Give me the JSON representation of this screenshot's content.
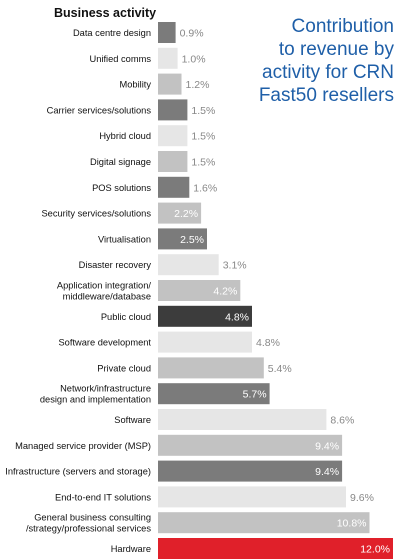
{
  "chart_data": {
    "type": "bar",
    "orientation": "horizontal",
    "column_header": "Business activity",
    "title_lines": [
      "Contribution",
      "to revenue by",
      "activity for CRN",
      "Fast50 resellers"
    ],
    "categories": [
      [
        "Data centre design"
      ],
      [
        "Unified comms"
      ],
      [
        "Mobility"
      ],
      [
        "Carrier services/solutions"
      ],
      [
        "Hybrid cloud"
      ],
      [
        "Digital signage"
      ],
      [
        "POS solutions"
      ],
      [
        "Security services/solutions"
      ],
      [
        "Virtualisation"
      ],
      [
        "Disaster recovery"
      ],
      [
        "Application integration/",
        "middleware/database"
      ],
      [
        "Public cloud"
      ],
      [
        "Software development"
      ],
      [
        "Private cloud"
      ],
      [
        "Network/infrastructure",
        "design and implementation"
      ],
      [
        "Software"
      ],
      [
        "Managed service provider (MSP)"
      ],
      [
        "Infrastructure (servers and storage)"
      ],
      [
        "End-to-end IT solutions"
      ],
      [
        "General business consulting",
        "/strategy/professional services"
      ],
      [
        "Hardware"
      ]
    ],
    "values": [
      0.9,
      1.0,
      1.2,
      1.5,
      1.5,
      1.5,
      1.6,
      2.2,
      2.5,
      3.1,
      4.2,
      4.8,
      4.8,
      5.4,
      5.7,
      8.6,
      9.4,
      9.4,
      9.6,
      10.8,
      12.0
    ],
    "value_labels": [
      "0.9%",
      "1.0%",
      "1.2%",
      "1.5%",
      "1.5%",
      "1.5%",
      "1.6%",
      "2.2%",
      "2.5%",
      "3.1%",
      "4.2%",
      "4.8%",
      "4.8%",
      "5.4%",
      "5.7%",
      "8.6%",
      "9.4%",
      "9.4%",
      "9.6%",
      "10.8%",
      "12.0%"
    ],
    "bar_colors": [
      "#7b7b7b",
      "#e6e6e6",
      "#c2c2c2",
      "#7b7b7b",
      "#e6e6e6",
      "#c2c2c2",
      "#7b7b7b",
      "#c2c2c2",
      "#7b7b7b",
      "#e6e6e6",
      "#c2c2c2",
      "#3c3c3c",
      "#e6e6e6",
      "#c2c2c2",
      "#7b7b7b",
      "#e6e6e6",
      "#c2c2c2",
      "#7b7b7b",
      "#e6e6e6",
      "#c2c2c2",
      "#e0202a"
    ],
    "label_colors": [
      "#888888",
      "#888888",
      "#888888",
      "#888888",
      "#888888",
      "#888888",
      "#888888",
      "#ffffff",
      "#ffffff",
      "#888888",
      "#ffffff",
      "#ffffff",
      "#888888",
      "#888888",
      "#ffffff",
      "#888888",
      "#ffffff",
      "#ffffff",
      "#888888",
      "#ffffff",
      "#ffffff"
    ],
    "xlim": [
      0,
      12.0
    ],
    "unit": "%",
    "grid": false,
    "colors": {
      "title": "#1f5fa8",
      "accent": "#e0202a"
    }
  }
}
